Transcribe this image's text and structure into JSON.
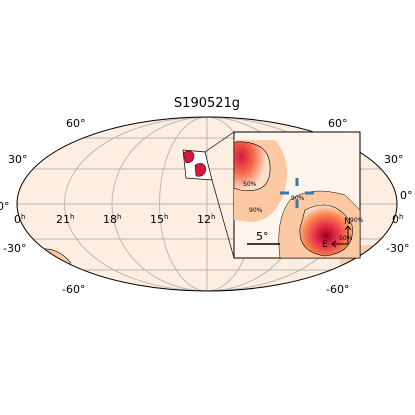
{
  "title": "S190521g",
  "dec_labels": {
    "left": [
      "60°",
      "30°",
      "0°",
      "-30°",
      "-60°"
    ],
    "right": [
      "60°",
      "30°",
      "0°",
      "-30°",
      "-60°"
    ]
  },
  "ra_labels": [
    {
      "hours": "0",
      "suffix": "h"
    },
    {
      "hours": "21",
      "suffix": "h"
    },
    {
      "hours": "18",
      "suffix": "h"
    },
    {
      "hours": "15",
      "suffix": "h"
    },
    {
      "hours": "12",
      "suffix": "h"
    },
    {
      "hours": "0",
      "suffix": "h"
    }
  ],
  "inset": {
    "contour_labels": [
      "50%",
      "90%",
      "90%",
      "50%",
      "90%"
    ],
    "scale_label": "5°",
    "compass": {
      "north": "N",
      "east": "E"
    }
  }
}
